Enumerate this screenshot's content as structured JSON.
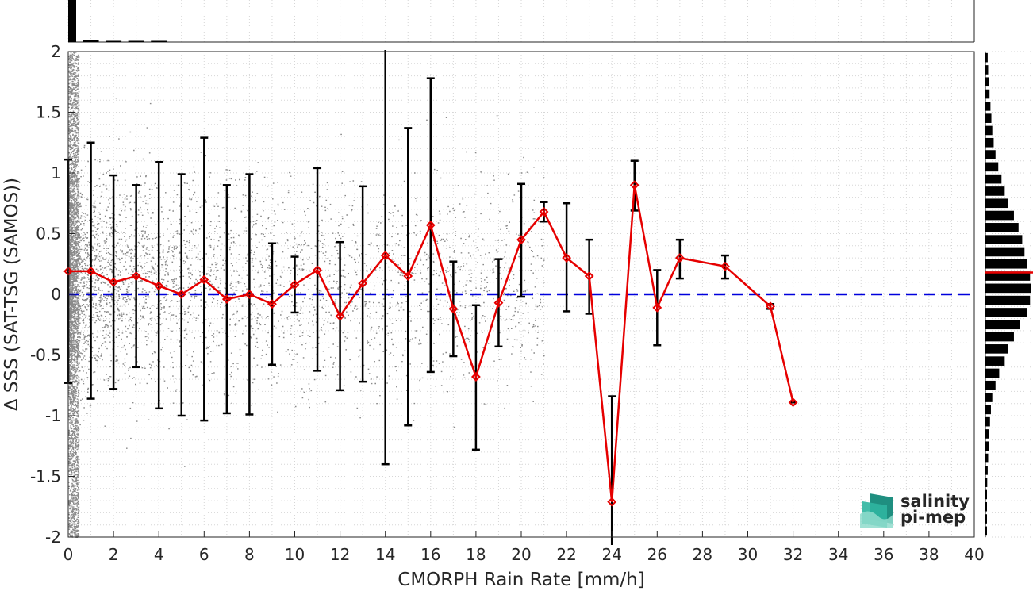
{
  "chart_data": {
    "type": "scatter",
    "xlabel": "CMORPH Rain Rate [mm/h]",
    "ylabel": "Δ SSS (SAT-TSG (SAMOS))",
    "xlim": [
      0,
      40
    ],
    "ylim": [
      -2,
      2
    ],
    "x_ticks": [
      "0",
      "2",
      "4",
      "6",
      "8",
      "10",
      "12",
      "14",
      "16",
      "18",
      "20",
      "22",
      "24",
      "26",
      "28",
      "30",
      "32",
      "34",
      "36",
      "38",
      "40"
    ],
    "y_ticks": [
      "2",
      "1.5",
      "1",
      "0.5",
      "0",
      "-0.5",
      "-1",
      "-1.5",
      "-2"
    ],
    "grid": true,
    "reference_line": {
      "y": 0,
      "color": "#0000dd",
      "style": "dashed"
    },
    "series": [
      {
        "points": [
          {
            "x": 0,
            "y": 0.19,
            "low": -0.73,
            "high": 1.11
          },
          {
            "x": 1,
            "y": 0.19,
            "low": -0.86,
            "high": 1.25
          },
          {
            "x": 2,
            "y": 0.1,
            "low": -0.78,
            "high": 0.98
          },
          {
            "x": 3,
            "y": 0.15,
            "low": -0.6,
            "high": 0.9
          },
          {
            "x": 4,
            "y": 0.07,
            "low": -0.94,
            "high": 1.09
          },
          {
            "x": 5,
            "y": 0.0,
            "low": -1.0,
            "high": 0.99
          },
          {
            "x": 6,
            "y": 0.12,
            "low": -1.04,
            "high": 1.29
          },
          {
            "x": 7,
            "y": -0.04,
            "low": -0.98,
            "high": 0.9
          },
          {
            "x": 8,
            "y": 0.0,
            "low": -0.99,
            "high": 0.99
          },
          {
            "x": 9,
            "y": -0.08,
            "low": -0.58,
            "high": 0.42
          },
          {
            "x": 10,
            "y": 0.08,
            "low": -0.15,
            "high": 0.31
          },
          {
            "x": 11,
            "y": 0.2,
            "low": -0.63,
            "high": 1.04
          },
          {
            "x": 12,
            "y": -0.18,
            "low": -0.79,
            "high": 0.43
          },
          {
            "x": 13,
            "y": 0.09,
            "low": -0.72,
            "high": 0.89
          },
          {
            "x": 14,
            "y": 0.32,
            "low": -1.4,
            "high": 2.04
          },
          {
            "x": 15,
            "y": 0.15,
            "low": -1.08,
            "high": 1.37
          },
          {
            "x": 16,
            "y": 0.57,
            "low": -0.64,
            "high": 1.78
          },
          {
            "x": 17,
            "y": -0.12,
            "low": -0.51,
            "high": 0.27
          },
          {
            "x": 18,
            "y": -0.68,
            "low": -1.28,
            "high": -0.09
          },
          {
            "x": 19,
            "y": -0.07,
            "low": -0.43,
            "high": 0.29
          },
          {
            "x": 20,
            "y": 0.45,
            "low": -0.02,
            "high": 0.91
          },
          {
            "x": 21,
            "y": 0.68,
            "low": 0.6,
            "high": 0.76
          },
          {
            "x": 22,
            "y": 0.3,
            "low": -0.14,
            "high": 0.75
          },
          {
            "x": 23,
            "y": 0.15,
            "low": -0.16,
            "high": 0.45
          },
          {
            "x": 24,
            "y": -1.71,
            "low": -2.1,
            "high": -0.84
          },
          {
            "x": 25,
            "y": 0.9,
            "low": 0.69,
            "high": 1.1
          },
          {
            "x": 26,
            "y": -0.11,
            "low": -0.42,
            "high": 0.2
          },
          {
            "x": 27,
            "y": 0.3,
            "low": 0.13,
            "high": 0.45
          },
          {
            "x": 29,
            "y": 0.23,
            "low": 0.13,
            "high": 0.32
          },
          {
            "x": 31,
            "y": -0.1,
            "low": -0.12,
            "high": -0.08
          },
          {
            "x": 32,
            "y": -0.89,
            "low": -0.89,
            "high": -0.89
          }
        ],
        "color": "#e60000"
      }
    ],
    "top_histogram": {
      "x": [
        0.25,
        1,
        2,
        3,
        4
      ],
      "values": [
        1.0,
        0.04,
        0.02,
        0.015,
        0.01
      ]
    },
    "right_histogram": {
      "y": [
        1.95,
        1.85,
        1.75,
        1.65,
        1.55,
        1.45,
        1.35,
        1.25,
        1.15,
        1.05,
        0.95,
        0.85,
        0.75,
        0.65,
        0.55,
        0.45,
        0.35,
        0.25,
        0.15,
        0.05,
        -0.05,
        -0.15,
        -0.25,
        -0.35,
        -0.45,
        -0.55,
        -0.65,
        -0.75,
        -0.85,
        -0.95,
        -1.05,
        -1.15,
        -1.25,
        -1.35,
        -1.45,
        -1.55,
        -1.65,
        -1.75,
        -1.85,
        -1.95
      ],
      "values": [
        0.05,
        0.06,
        0.07,
        0.09,
        0.11,
        0.13,
        0.15,
        0.18,
        0.22,
        0.28,
        0.35,
        0.42,
        0.5,
        0.62,
        0.72,
        0.8,
        0.85,
        0.9,
        0.97,
        1.0,
        0.97,
        0.9,
        0.75,
        0.62,
        0.5,
        0.42,
        0.3,
        0.22,
        0.15,
        0.12,
        0.1,
        0.08,
        0.07,
        0.06,
        0.05,
        0.04,
        0.03,
        0.03,
        0.02,
        0.02
      ],
      "mean_y": 0.18,
      "mean_color": "#e60000"
    }
  },
  "logo": {
    "line1": "salinity",
    "line2": "pi-mep",
    "color": "#1a9f8c"
  }
}
